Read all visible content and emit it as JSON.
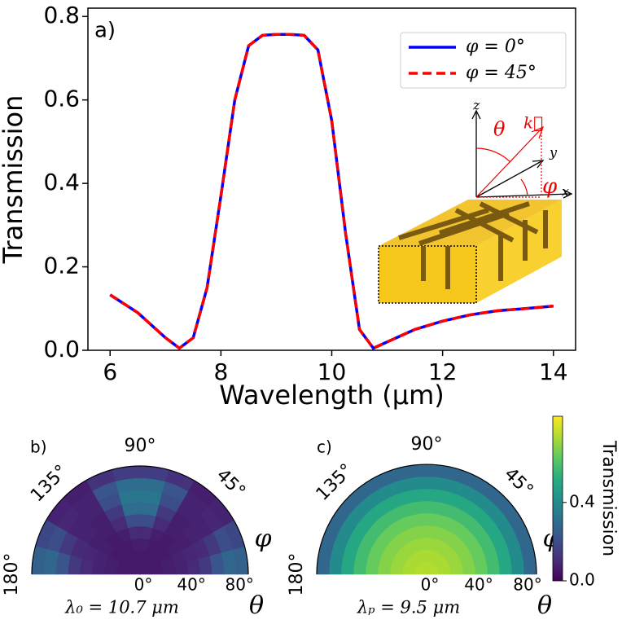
{
  "chart_data": [
    {
      "type": "line",
      "panel_label": "a)",
      "xlabel": "Wavelength (μm)",
      "ylabel": "Transmission",
      "x": [
        6,
        6.5,
        7,
        7.25,
        7.5,
        7.75,
        8,
        8.25,
        8.5,
        8.75,
        9,
        9.25,
        9.5,
        9.75,
        10,
        10.25,
        10.5,
        10.75,
        11,
        11.5,
        12,
        12.5,
        13,
        13.5,
        14
      ],
      "series": [
        {
          "name": "φ = 0°",
          "color": "#0000ff",
          "dashed": false,
          "values": [
            0.133,
            0.09,
            0.03,
            0.005,
            0.03,
            0.15,
            0.37,
            0.6,
            0.73,
            0.755,
            0.757,
            0.757,
            0.755,
            0.72,
            0.55,
            0.28,
            0.05,
            0.005,
            0.02,
            0.05,
            0.07,
            0.085,
            0.095,
            0.1,
            0.106
          ]
        },
        {
          "name": "φ = 45°",
          "color": "#ff0000",
          "dashed": true,
          "values": [
            0.133,
            0.09,
            0.03,
            0.005,
            0.03,
            0.15,
            0.37,
            0.6,
            0.73,
            0.755,
            0.757,
            0.757,
            0.755,
            0.72,
            0.55,
            0.28,
            0.05,
            0.005,
            0.02,
            0.05,
            0.07,
            0.085,
            0.095,
            0.1,
            0.106
          ]
        }
      ],
      "xlim": [
        5.6,
        14.4
      ],
      "xticks": [
        6,
        8,
        10,
        12,
        14
      ],
      "ylim": [
        0,
        0.82
      ],
      "yticks": [
        {
          "value": 0,
          "label": "0.0"
        },
        0.2,
        0.4,
        0.6,
        0.8
      ],
      "legend": "upper right",
      "annotations": [
        "z",
        "θ",
        "k⃗",
        "y",
        "x",
        "φ"
      ]
    },
    {
      "type": "polar-heatmap",
      "panel_label": "b)",
      "angle_label": "φ",
      "radius_label": "θ",
      "caption": "λ₀ = 10.7 μm",
      "phi_bins": [
        0,
        15,
        30,
        45,
        60,
        75,
        90,
        105,
        120,
        135,
        150,
        165,
        180
      ],
      "theta_bins": [
        0,
        10,
        20,
        30,
        40,
        50,
        60,
        70,
        80,
        90
      ],
      "rlim": [
        0,
        90
      ],
      "angle_ticks": [
        {
          "value": 180,
          "label": "180°"
        },
        {
          "value": 135,
          "label": "135°"
        },
        {
          "value": 90,
          "label": "90°"
        },
        {
          "value": 45,
          "label": "45°"
        }
      ],
      "radius_ticks": [
        {
          "value": 0,
          "label": "0°"
        },
        {
          "value": 40,
          "label": "40°"
        },
        {
          "value": 80,
          "label": "80°"
        }
      ],
      "clim": [
        0,
        0.84
      ],
      "values": [
        [
          0.06,
          0.06,
          0.07,
          0.08,
          0.1,
          0.14,
          0.22,
          0.28,
          0.26
        ],
        [
          0.06,
          0.06,
          0.07,
          0.08,
          0.09,
          0.1,
          0.14,
          0.2,
          0.18
        ],
        [
          0.06,
          0.06,
          0.06,
          0.07,
          0.07,
          0.08,
          0.08,
          0.09,
          0.08
        ],
        [
          0.06,
          0.06,
          0.06,
          0.06,
          0.07,
          0.07,
          0.08,
          0.08,
          0.07
        ],
        [
          0.06,
          0.06,
          0.06,
          0.07,
          0.1,
          0.14,
          0.2,
          0.22,
          0.12
        ],
        [
          0.06,
          0.06,
          0.07,
          0.1,
          0.2,
          0.3,
          0.33,
          0.3,
          0.15
        ],
        [
          0.06,
          0.06,
          0.07,
          0.1,
          0.2,
          0.3,
          0.33,
          0.3,
          0.15
        ],
        [
          0.06,
          0.06,
          0.06,
          0.07,
          0.1,
          0.14,
          0.2,
          0.22,
          0.12
        ],
        [
          0.06,
          0.06,
          0.06,
          0.06,
          0.07,
          0.07,
          0.08,
          0.08,
          0.07
        ],
        [
          0.06,
          0.06,
          0.06,
          0.07,
          0.07,
          0.08,
          0.08,
          0.09,
          0.08
        ],
        [
          0.06,
          0.06,
          0.07,
          0.08,
          0.09,
          0.1,
          0.14,
          0.2,
          0.18
        ],
        [
          0.06,
          0.06,
          0.07,
          0.08,
          0.1,
          0.14,
          0.22,
          0.28,
          0.26
        ]
      ]
    },
    {
      "type": "polar-heatmap",
      "panel_label": "c)",
      "angle_label": "φ",
      "radius_label": "θ",
      "caption": "λₚ = 9.5 μm",
      "phi_bins": [
        0,
        15,
        30,
        45,
        60,
        75,
        90,
        105,
        120,
        135,
        150,
        165,
        180
      ],
      "theta_bins": [
        0,
        10,
        20,
        30,
        40,
        50,
        60,
        70,
        80,
        90
      ],
      "rlim": [
        0,
        90
      ],
      "angle_ticks": [
        {
          "value": 180,
          "label": "180°"
        },
        {
          "value": 135,
          "label": "135°"
        },
        {
          "value": 90,
          "label": "90°"
        },
        {
          "value": 45,
          "label": "45°"
        }
      ],
      "radius_ticks": [
        {
          "value": 0,
          "label": "0°"
        },
        {
          "value": 40,
          "label": "40°"
        },
        {
          "value": 80,
          "label": "80°"
        }
      ],
      "clim": [
        0,
        0.84
      ],
      "colorbar": {
        "label": "Transmission",
        "lim": [
          0,
          0.84
        ],
        "ticks": [
          {
            "value": 0,
            "label": "0.0"
          },
          0.4
        ]
      },
      "values": [
        [
          0.74,
          0.73,
          0.71,
          0.68,
          0.64,
          0.58,
          0.5,
          0.4,
          0.28
        ],
        [
          0.74,
          0.73,
          0.71,
          0.68,
          0.64,
          0.58,
          0.5,
          0.4,
          0.28
        ],
        [
          0.74,
          0.73,
          0.71,
          0.68,
          0.64,
          0.58,
          0.5,
          0.4,
          0.28
        ],
        [
          0.74,
          0.73,
          0.71,
          0.68,
          0.64,
          0.58,
          0.5,
          0.4,
          0.28
        ],
        [
          0.74,
          0.73,
          0.71,
          0.68,
          0.64,
          0.58,
          0.5,
          0.4,
          0.28
        ],
        [
          0.74,
          0.73,
          0.71,
          0.68,
          0.64,
          0.58,
          0.5,
          0.4,
          0.28
        ],
        [
          0.74,
          0.73,
          0.71,
          0.68,
          0.64,
          0.58,
          0.5,
          0.4,
          0.28
        ],
        [
          0.74,
          0.73,
          0.71,
          0.68,
          0.64,
          0.58,
          0.5,
          0.4,
          0.28
        ],
        [
          0.74,
          0.73,
          0.71,
          0.68,
          0.64,
          0.58,
          0.5,
          0.4,
          0.28
        ],
        [
          0.74,
          0.73,
          0.71,
          0.68,
          0.64,
          0.58,
          0.5,
          0.4,
          0.28
        ],
        [
          0.74,
          0.73,
          0.71,
          0.68,
          0.64,
          0.58,
          0.5,
          0.4,
          0.28
        ],
        [
          0.74,
          0.73,
          0.71,
          0.68,
          0.64,
          0.58,
          0.5,
          0.4,
          0.28
        ]
      ]
    }
  ]
}
